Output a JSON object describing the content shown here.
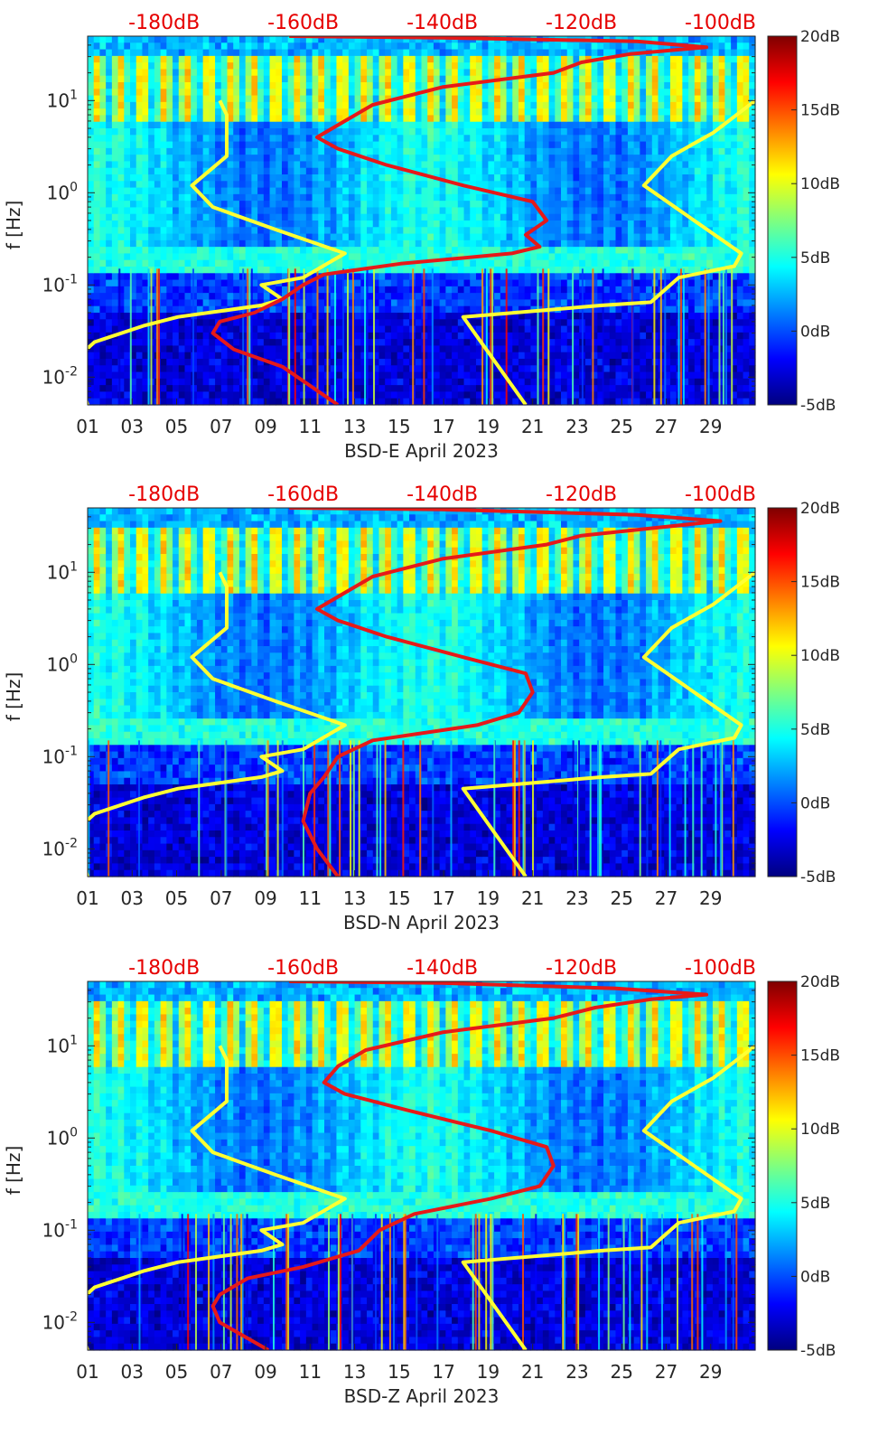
{
  "chart_data": [
    {
      "type": "heatmap",
      "title": "",
      "xlabel": "BSD-E April 2023",
      "ylabel": "f [Hz]",
      "x_tick_labels": [
        "01",
        "03",
        "05",
        "07",
        "09",
        "11",
        "13",
        "15",
        "17",
        "19",
        "21",
        "23",
        "25",
        "27",
        "29"
      ],
      "x_tick_days": [
        1,
        3,
        5,
        7,
        9,
        11,
        13,
        15,
        17,
        19,
        21,
        23,
        25,
        27,
        29
      ],
      "xlim": [
        1,
        31
      ],
      "y_scale": "log",
      "ylim": [
        0.005,
        50
      ],
      "y_tick_labels": [
        {
          "base": "10",
          "exp": "-2",
          "value": 0.01
        },
        {
          "base": "10",
          "exp": "-1",
          "value": 0.1
        },
        {
          "base": "10",
          "exp": "0",
          "value": 1
        },
        {
          "base": "10",
          "exp": "1",
          "value": 10
        }
      ],
      "top_axis_labels": [
        "-180dB",
        "-160dB",
        "-140dB",
        "-120dB",
        "-100dB"
      ],
      "top_axis_values": [
        -180,
        -160,
        -140,
        -120,
        -100
      ],
      "top_axis_range": [
        -191,
        -95
      ],
      "colorbar": {
        "labels": [
          "20dB",
          "15dB",
          "10dB",
          "5dB",
          "0dB",
          "-5dB"
        ],
        "values": [
          20,
          15,
          10,
          5,
          0,
          -5
        ],
        "range": [
          -5,
          20
        ],
        "colormap": "jet"
      },
      "series": [
        {
          "name": "noise-model-low",
          "color": "#ffff33",
          "points": [
            [
              -191,
              0.005
            ],
            [
              -193,
              0.015
            ],
            [
              -190,
              0.024
            ],
            [
              -183,
              0.036
            ],
            [
              -178,
              0.045
            ],
            [
              -166,
              0.06
            ],
            [
              -163,
              0.07
            ],
            [
              -166,
              0.1
            ],
            [
              -160,
              0.12
            ],
            [
              -154,
              0.22
            ],
            [
              -164,
              0.4
            ],
            [
              -173,
              0.7
            ],
            [
              -176,
              1.2
            ],
            [
              -171,
              2.5
            ],
            [
              -171,
              7
            ],
            [
              -172,
              10
            ]
          ]
        },
        {
          "name": "noise-model-high",
          "color": "#ffff33",
          "points": [
            [
              -128,
              0.005
            ],
            [
              -137,
              0.045
            ],
            [
              -117,
              0.06
            ],
            [
              -110,
              0.065
            ],
            [
              -106,
              0.12
            ],
            [
              -98,
              0.16
            ],
            [
              -97,
              0.22
            ],
            [
              -111,
              1.2
            ],
            [
              -107,
              2.5
            ],
            [
              -101,
              4.5
            ],
            [
              -95,
              10
            ]
          ]
        },
        {
          "name": "station-psd",
          "color": "#e61919",
          "points": [
            [
              -155,
              0.005
            ],
            [
              -163,
              0.013
            ],
            [
              -170,
              0.02
            ],
            [
              -173,
              0.03
            ],
            [
              -172,
              0.04
            ],
            [
              -167,
              0.05
            ],
            [
              -163,
              0.07
            ],
            [
              -160,
              0.1
            ],
            [
              -157,
              0.13
            ],
            [
              -146,
              0.17
            ],
            [
              -130,
              0.22
            ],
            [
              -126,
              0.26
            ],
            [
              -128,
              0.35
            ],
            [
              -125,
              0.5
            ],
            [
              -127,
              0.8
            ],
            [
              -137,
              1.2
            ],
            [
              -148,
              2
            ],
            [
              -155,
              3
            ],
            [
              -158,
              4
            ],
            [
              -154,
              6
            ],
            [
              -150,
              9
            ],
            [
              -140,
              14
            ],
            [
              -124,
              20
            ],
            [
              -120,
              26
            ],
            [
              -113,
              32
            ],
            [
              -102,
              38
            ],
            [
              -112,
              44
            ],
            [
              -140,
              48
            ],
            [
              -162,
              50
            ]
          ]
        }
      ]
    },
    {
      "type": "heatmap",
      "title": "",
      "xlabel": "BSD-N April 2023",
      "ylabel": "f [Hz]",
      "x_tick_labels": [
        "01",
        "03",
        "05",
        "07",
        "09",
        "11",
        "13",
        "15",
        "17",
        "19",
        "21",
        "23",
        "25",
        "27",
        "29"
      ],
      "x_tick_days": [
        1,
        3,
        5,
        7,
        9,
        11,
        13,
        15,
        17,
        19,
        21,
        23,
        25,
        27,
        29
      ],
      "xlim": [
        1,
        31
      ],
      "y_scale": "log",
      "ylim": [
        0.005,
        50
      ],
      "y_tick_labels": [
        {
          "base": "10",
          "exp": "-2",
          "value": 0.01
        },
        {
          "base": "10",
          "exp": "-1",
          "value": 0.1
        },
        {
          "base": "10",
          "exp": "0",
          "value": 1
        },
        {
          "base": "10",
          "exp": "1",
          "value": 10
        }
      ],
      "top_axis_labels": [
        "-180dB",
        "-160dB",
        "-140dB",
        "-120dB",
        "-100dB"
      ],
      "top_axis_values": [
        -180,
        -160,
        -140,
        -120,
        -100
      ],
      "top_axis_range": [
        -191,
        -95
      ],
      "colorbar": {
        "labels": [
          "20dB",
          "15dB",
          "10dB",
          "5dB",
          "0dB",
          "-5dB"
        ],
        "values": [
          20,
          15,
          10,
          5,
          0,
          -5
        ],
        "range": [
          -5,
          20
        ],
        "colormap": "jet"
      },
      "series": [
        {
          "name": "noise-model-low",
          "color": "#ffff33",
          "points": [
            [
              -191,
              0.005
            ],
            [
              -193,
              0.015
            ],
            [
              -190,
              0.024
            ],
            [
              -183,
              0.036
            ],
            [
              -178,
              0.045
            ],
            [
              -166,
              0.06
            ],
            [
              -163,
              0.07
            ],
            [
              -166,
              0.1
            ],
            [
              -160,
              0.12
            ],
            [
              -154,
              0.22
            ],
            [
              -164,
              0.4
            ],
            [
              -173,
              0.7
            ],
            [
              -176,
              1.2
            ],
            [
              -171,
              2.5
            ],
            [
              -171,
              7
            ],
            [
              -172,
              10
            ]
          ]
        },
        {
          "name": "noise-model-high",
          "color": "#ffff33",
          "points": [
            [
              -128,
              0.005
            ],
            [
              -137,
              0.045
            ],
            [
              -117,
              0.06
            ],
            [
              -110,
              0.065
            ],
            [
              -106,
              0.12
            ],
            [
              -98,
              0.16
            ],
            [
              -97,
              0.22
            ],
            [
              -111,
              1.2
            ],
            [
              -107,
              2.5
            ],
            [
              -101,
              4.5
            ],
            [
              -95,
              10
            ]
          ]
        },
        {
          "name": "station-psd",
          "color": "#e61919",
          "points": [
            [
              -155,
              0.005
            ],
            [
              -158,
              0.01
            ],
            [
              -160,
              0.02
            ],
            [
              -159,
              0.04
            ],
            [
              -157,
              0.06
            ],
            [
              -155,
              0.1
            ],
            [
              -150,
              0.15
            ],
            [
              -135,
              0.22
            ],
            [
              -129,
              0.3
            ],
            [
              -127,
              0.5
            ],
            [
              -128,
              0.8
            ],
            [
              -137,
              1.2
            ],
            [
              -148,
              2
            ],
            [
              -155,
              3
            ],
            [
              -158,
              4
            ],
            [
              -154,
              6
            ],
            [
              -150,
              9
            ],
            [
              -140,
              14
            ],
            [
              -125,
              20
            ],
            [
              -120,
              25
            ],
            [
              -110,
              30
            ],
            [
              -100,
              36
            ],
            [
              -112,
              42
            ],
            [
              -140,
              48
            ],
            [
              -162,
              50
            ]
          ]
        }
      ]
    },
    {
      "type": "heatmap",
      "title": "",
      "xlabel": "BSD-Z April 2023",
      "ylabel": "f [Hz]",
      "x_tick_labels": [
        "01",
        "03",
        "05",
        "07",
        "09",
        "11",
        "13",
        "15",
        "17",
        "19",
        "21",
        "23",
        "25",
        "27",
        "29"
      ],
      "x_tick_days": [
        1,
        3,
        5,
        7,
        9,
        11,
        13,
        15,
        17,
        19,
        21,
        23,
        25,
        27,
        29
      ],
      "xlim": [
        1,
        31
      ],
      "y_scale": "log",
      "ylim": [
        0.005,
        50
      ],
      "y_tick_labels": [
        {
          "base": "10",
          "exp": "-2",
          "value": 0.01
        },
        {
          "base": "10",
          "exp": "-1",
          "value": 0.1
        },
        {
          "base": "10",
          "exp": "0",
          "value": 1
        },
        {
          "base": "10",
          "exp": "1",
          "value": 10
        }
      ],
      "top_axis_labels": [
        "-180dB",
        "-160dB",
        "-140dB",
        "-120dB",
        "-100dB"
      ],
      "top_axis_values": [
        -180,
        -160,
        -140,
        -120,
        -100
      ],
      "top_axis_range": [
        -191,
        -95
      ],
      "colorbar": {
        "labels": [
          "20dB",
          "15dB",
          "10dB",
          "5dB",
          "0dB",
          "-5dB"
        ],
        "values": [
          20,
          15,
          10,
          5,
          0,
          -5
        ],
        "range": [
          -5,
          20
        ],
        "colormap": "jet"
      },
      "series": [
        {
          "name": "noise-model-low",
          "color": "#ffff33",
          "points": [
            [
              -191,
              0.005
            ],
            [
              -193,
              0.015
            ],
            [
              -190,
              0.024
            ],
            [
              -183,
              0.036
            ],
            [
              -178,
              0.045
            ],
            [
              -166,
              0.06
            ],
            [
              -163,
              0.07
            ],
            [
              -166,
              0.1
            ],
            [
              -160,
              0.12
            ],
            [
              -154,
              0.22
            ],
            [
              -164,
              0.4
            ],
            [
              -173,
              0.7
            ],
            [
              -176,
              1.2
            ],
            [
              -171,
              2.5
            ],
            [
              -171,
              7
            ],
            [
              -172,
              10
            ]
          ]
        },
        {
          "name": "noise-model-high",
          "color": "#ffff33",
          "points": [
            [
              -128,
              0.005
            ],
            [
              -137,
              0.045
            ],
            [
              -117,
              0.06
            ],
            [
              -110,
              0.065
            ],
            [
              -106,
              0.12
            ],
            [
              -98,
              0.16
            ],
            [
              -97,
              0.22
            ],
            [
              -111,
              1.2
            ],
            [
              -107,
              2.5
            ],
            [
              -101,
              4.5
            ],
            [
              -95,
              10
            ]
          ]
        },
        {
          "name": "station-psd",
          "color": "#e61919",
          "points": [
            [
              -165,
              0.005
            ],
            [
              -172,
              0.01
            ],
            [
              -173,
              0.015
            ],
            [
              -172,
              0.02
            ],
            [
              -168,
              0.03
            ],
            [
              -160,
              0.04
            ],
            [
              -152,
              0.06
            ],
            [
              -149,
              0.1
            ],
            [
              -144,
              0.15
            ],
            [
              -133,
              0.22
            ],
            [
              -126,
              0.3
            ],
            [
              -124,
              0.5
            ],
            [
              -125,
              0.8
            ],
            [
              -133,
              1.2
            ],
            [
              -145,
              2
            ],
            [
              -154,
              3
            ],
            [
              -157,
              4
            ],
            [
              -155,
              6
            ],
            [
              -151,
              9
            ],
            [
              -140,
              14
            ],
            [
              -124,
              20
            ],
            [
              -118,
              26
            ],
            [
              -110,
              32
            ],
            [
              -102,
              36
            ],
            [
              -115,
              42
            ],
            [
              -140,
              48
            ],
            [
              -162,
              50
            ]
          ]
        }
      ]
    }
  ]
}
